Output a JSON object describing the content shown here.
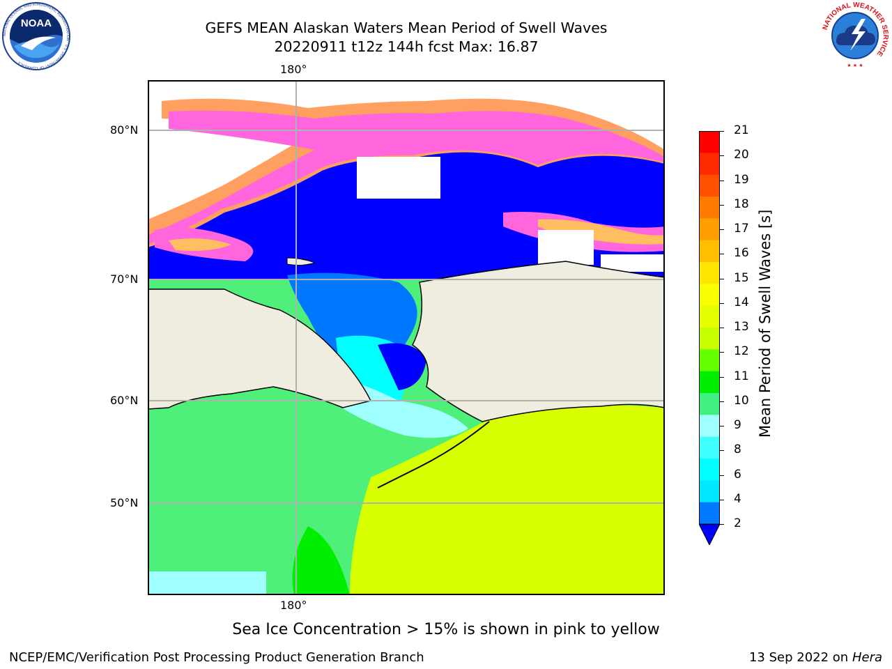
{
  "header": {
    "title_line1": "GEFS MEAN Alaskan Waters Mean Period of Swell Waves",
    "title_line2": "20220911 t12z 144h fcst   Max: 16.87"
  },
  "logos": {
    "left": "NOAA",
    "left_ring": "NATIONAL OCEANIC AND ATMOSPHERIC ADMINISTRATION · U.S. DEPARTMENT OF COMMERCE ·",
    "right_ring": "NATIONAL WEATHER SERVICE"
  },
  "map": {
    "lon_top": "180°",
    "lon_bottom": "180°",
    "lat_labels": [
      "80°N",
      "70°N",
      "60°N",
      "50°N"
    ],
    "colors": {
      "land": "#eeeddf",
      "ice_white": "#ffffff",
      "swell_2_4": "#0077ff",
      "swell_below_2": "#0000ff",
      "grid": "#b0b0b0"
    }
  },
  "colorbar": {
    "label": "Mean Period of Swell Waves [s]",
    "ticks": [
      "21",
      "20",
      "19",
      "18",
      "17",
      "16",
      "15",
      "14",
      "13",
      "12",
      "11",
      "10",
      "9",
      "8",
      "6",
      "4",
      "2"
    ],
    "colors": [
      "#ff0000",
      "#ff2a00",
      "#ff5000",
      "#ff7a00",
      "#ff9e00",
      "#ffbe00",
      "#ffe600",
      "#f8ff00",
      "#e6ff00",
      "#c8ff00",
      "#66ff00",
      "#00ee00",
      "#40f080",
      "#a0ffff",
      "#40ffff",
      "#00ffff",
      "#00e8ff",
      "#0078ff",
      "#0000ff"
    ]
  },
  "footer": {
    "caption": "Sea Ice Concentration > 15% is shown in pink to yellow",
    "credit": "NCEP/EMC/Verification Post Processing Product Generation Branch",
    "date": "13 Sep 2022 on",
    "machine": "Hera"
  }
}
